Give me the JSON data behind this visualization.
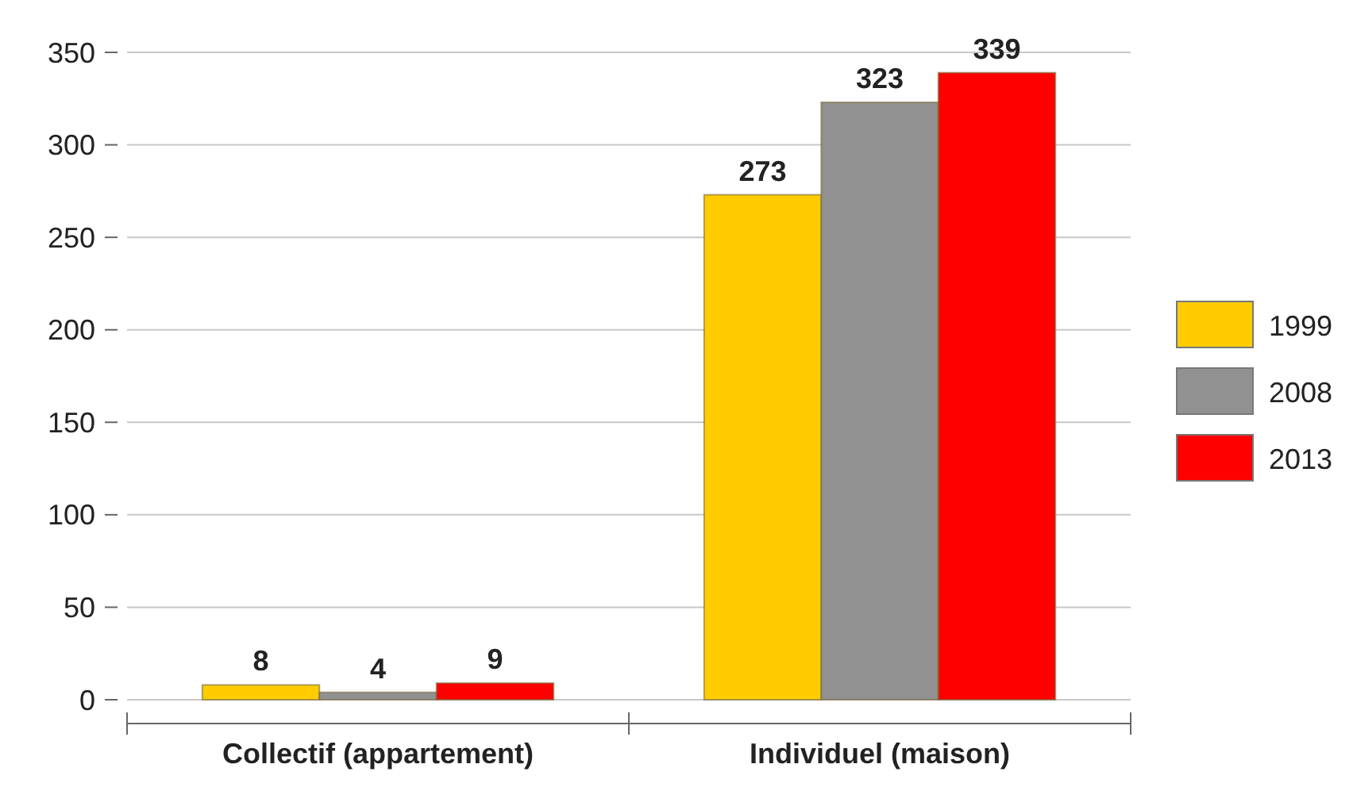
{
  "chart_data": {
    "type": "bar",
    "categories": [
      "Collectif (appartement)",
      "Individuel (maison)"
    ],
    "series": [
      {
        "name": "1999",
        "color": "#ffcc00",
        "values": [
          8,
          273
        ]
      },
      {
        "name": "2008",
        "color": "#919191",
        "values": [
          4,
          323
        ]
      },
      {
        "name": "2013",
        "color": "#ff0000",
        "values": [
          9,
          339
        ]
      }
    ],
    "ylim": [
      0,
      350
    ],
    "yticks": [
      0,
      50,
      100,
      150,
      200,
      250,
      300,
      350
    ],
    "grid": "y",
    "legend": "right",
    "data_labels": true
  }
}
